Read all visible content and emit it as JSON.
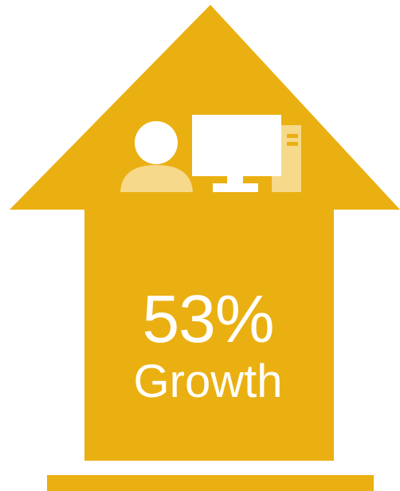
{
  "infographic": {
    "stat_value": "53%",
    "stat_label": "Growth",
    "arrow_color": "#EAB012",
    "icon_color": "#FFFFFF",
    "icon_secondary_color": "#F6D98A",
    "icon": "user-at-computer-icon",
    "direction": "up"
  }
}
